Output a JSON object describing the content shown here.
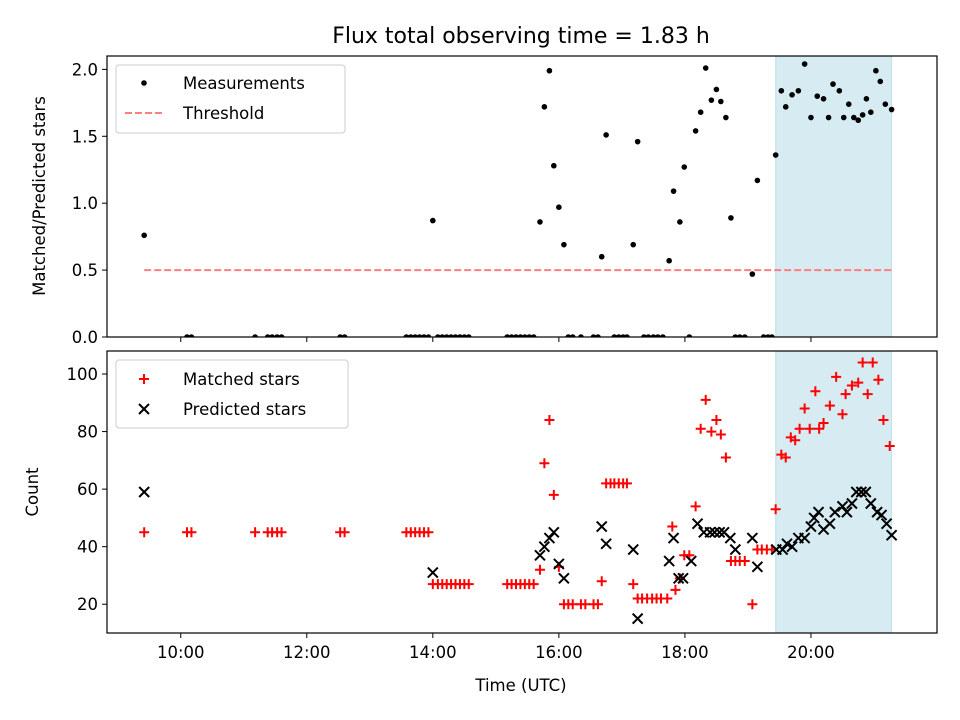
{
  "chart_data": [
    {
      "type": "scatter",
      "title": "Flux total observing time = 1.83 h",
      "xlabel": "",
      "ylabel": "Matched/Predicted stars",
      "xlim": [
        8.83,
        22.0
      ],
      "ylim": [
        0.0,
        2.1
      ],
      "yticks": [
        0.0,
        0.5,
        1.0,
        1.5,
        2.0
      ],
      "ytick_labels": [
        "0.0",
        "0.5",
        "1.0",
        "1.5",
        "2.0"
      ],
      "xticks": [
        10,
        12,
        14,
        16,
        18,
        20
      ],
      "highlight_span": [
        19.44,
        21.28
      ],
      "legend": {
        "position": "upper-left",
        "measurements_label": "Measurements",
        "threshold_label": "Threshold"
      },
      "threshold": {
        "value": 0.5,
        "x_range": [
          9.42,
          21.28
        ],
        "color": "#ff7f7f"
      },
      "series": [
        {
          "name": "Measurements",
          "marker": "dot",
          "color": "#000000",
          "points": [
            [
              9.42,
              0.76
            ],
            [
              10.1,
              0.0
            ],
            [
              10.17,
              0.0
            ],
            [
              11.18,
              0.0
            ],
            [
              11.38,
              0.0
            ],
            [
              11.45,
              0.0
            ],
            [
              11.53,
              0.0
            ],
            [
              11.6,
              0.0
            ],
            [
              12.53,
              0.0
            ],
            [
              12.6,
              0.0
            ],
            [
              13.58,
              0.0
            ],
            [
              13.65,
              0.0
            ],
            [
              13.72,
              0.0
            ],
            [
              13.79,
              0.0
            ],
            [
              13.86,
              0.0
            ],
            [
              13.93,
              0.0
            ],
            [
              14.0,
              0.87
            ],
            [
              14.08,
              0.0
            ],
            [
              14.15,
              0.0
            ],
            [
              14.22,
              0.0
            ],
            [
              14.29,
              0.0
            ],
            [
              14.36,
              0.0
            ],
            [
              14.43,
              0.0
            ],
            [
              14.5,
              0.0
            ],
            [
              14.57,
              0.0
            ],
            [
              15.18,
              0.0
            ],
            [
              15.25,
              0.0
            ],
            [
              15.32,
              0.0
            ],
            [
              15.39,
              0.0
            ],
            [
              15.46,
              0.0
            ],
            [
              15.53,
              0.0
            ],
            [
              15.6,
              0.0
            ],
            [
              15.7,
              0.86
            ],
            [
              15.77,
              1.72
            ],
            [
              15.85,
              1.99
            ],
            [
              15.92,
              1.28
            ],
            [
              16.0,
              0.97
            ],
            [
              16.08,
              0.69
            ],
            [
              16.15,
              0.0
            ],
            [
              16.22,
              0.0
            ],
            [
              16.35,
              0.0
            ],
            [
              16.55,
              0.0
            ],
            [
              16.62,
              0.0
            ],
            [
              16.68,
              0.6
            ],
            [
              16.75,
              1.51
            ],
            [
              16.88,
              0.0
            ],
            [
              16.95,
              0.0
            ],
            [
              17.02,
              0.0
            ],
            [
              17.08,
              0.0
            ],
            [
              17.18,
              0.69
            ],
            [
              17.25,
              1.46
            ],
            [
              17.35,
              0.0
            ],
            [
              17.42,
              0.0
            ],
            [
              17.5,
              0.0
            ],
            [
              17.57,
              0.0
            ],
            [
              17.65,
              0.0
            ],
            [
              17.75,
              0.57
            ],
            [
              17.82,
              1.09
            ],
            [
              17.92,
              0.86
            ],
            [
              17.99,
              1.27
            ],
            [
              18.07,
              0.0
            ],
            [
              18.17,
              1.54
            ],
            [
              18.25,
              1.68
            ],
            [
              18.33,
              2.01
            ],
            [
              18.42,
              1.77
            ],
            [
              18.5,
              1.85
            ],
            [
              18.57,
              1.76
            ],
            [
              18.65,
              1.64
            ],
            [
              18.73,
              0.89
            ],
            [
              18.8,
              0.0
            ],
            [
              18.87,
              0.0
            ],
            [
              18.95,
              0.0
            ],
            [
              19.07,
              0.47
            ],
            [
              19.15,
              1.17
            ],
            [
              19.25,
              0.0
            ],
            [
              19.32,
              0.0
            ],
            [
              19.38,
              0.0
            ],
            [
              19.44,
              1.36
            ],
            [
              19.53,
              1.84
            ],
            [
              19.6,
              1.72
            ],
            [
              19.7,
              1.81
            ],
            [
              19.8,
              1.84
            ],
            [
              19.9,
              2.04
            ],
            [
              20.0,
              1.64
            ],
            [
              20.1,
              1.8
            ],
            [
              20.2,
              1.78
            ],
            [
              20.28,
              1.64
            ],
            [
              20.35,
              1.89
            ],
            [
              20.45,
              1.84
            ],
            [
              20.52,
              1.64
            ],
            [
              20.6,
              1.74
            ],
            [
              20.68,
              1.64
            ],
            [
              20.75,
              1.62
            ],
            [
              20.82,
              1.66
            ],
            [
              20.88,
              1.78
            ],
            [
              20.95,
              1.68
            ],
            [
              21.03,
              1.99
            ],
            [
              21.1,
              1.91
            ],
            [
              21.18,
              1.74
            ],
            [
              21.28,
              1.7
            ]
          ]
        }
      ]
    },
    {
      "type": "scatter",
      "title": "",
      "xlabel": "Time (UTC)",
      "ylabel": "Count",
      "xlim": [
        8.83,
        22.0
      ],
      "ylim": [
        10,
        108
      ],
      "yticks": [
        20,
        40,
        60,
        80,
        100
      ],
      "ytick_labels": [
        "20",
        "40",
        "60",
        "80",
        "100"
      ],
      "xticks": [
        10,
        12,
        14,
        16,
        18,
        20
      ],
      "xtick_labels": [
        "10:00",
        "12:00",
        "14:00",
        "16:00",
        "18:00",
        "20:00"
      ],
      "highlight_span": [
        19.44,
        21.28
      ],
      "legend": {
        "position": "upper-left"
      },
      "series": [
        {
          "name": "Matched stars",
          "marker": "plus",
          "color": "#ff0000",
          "points": [
            [
              9.42,
              45
            ],
            [
              10.1,
              45
            ],
            [
              10.17,
              45
            ],
            [
              11.18,
              45
            ],
            [
              11.38,
              45
            ],
            [
              11.45,
              45
            ],
            [
              11.53,
              45
            ],
            [
              11.6,
              45
            ],
            [
              12.53,
              45
            ],
            [
              12.6,
              45
            ],
            [
              13.58,
              45
            ],
            [
              13.65,
              45
            ],
            [
              13.72,
              45
            ],
            [
              13.79,
              45
            ],
            [
              13.86,
              45
            ],
            [
              13.93,
              45
            ],
            [
              14.0,
              27
            ],
            [
              14.08,
              27
            ],
            [
              14.15,
              27
            ],
            [
              14.22,
              27
            ],
            [
              14.29,
              27
            ],
            [
              14.36,
              27
            ],
            [
              14.43,
              27
            ],
            [
              14.5,
              27
            ],
            [
              14.57,
              27
            ],
            [
              15.18,
              27
            ],
            [
              15.25,
              27
            ],
            [
              15.32,
              27
            ],
            [
              15.39,
              27
            ],
            [
              15.46,
              27
            ],
            [
              15.53,
              27
            ],
            [
              15.6,
              27
            ],
            [
              15.7,
              32
            ],
            [
              15.77,
              69
            ],
            [
              15.85,
              84
            ],
            [
              15.92,
              58
            ],
            [
              16.0,
              33
            ],
            [
              16.08,
              20
            ],
            [
              16.15,
              20
            ],
            [
              16.22,
              20
            ],
            [
              16.35,
              20
            ],
            [
              16.42,
              20
            ],
            [
              16.55,
              20
            ],
            [
              16.62,
              20
            ],
            [
              16.68,
              28
            ],
            [
              16.75,
              62
            ],
            [
              16.82,
              62
            ],
            [
              16.88,
              62
            ],
            [
              16.95,
              62
            ],
            [
              17.02,
              62
            ],
            [
              17.08,
              62
            ],
            [
              17.18,
              27
            ],
            [
              17.25,
              22
            ],
            [
              17.32,
              22
            ],
            [
              17.4,
              22
            ],
            [
              17.48,
              22
            ],
            [
              17.55,
              22
            ],
            [
              17.62,
              22
            ],
            [
              17.72,
              22
            ],
            [
              17.8,
              47
            ],
            [
              17.85,
              25
            ],
            [
              17.92,
              29
            ],
            [
              17.99,
              37
            ],
            [
              18.07,
              37
            ],
            [
              18.17,
              54
            ],
            [
              18.25,
              81
            ],
            [
              18.33,
              91
            ],
            [
              18.42,
              80
            ],
            [
              18.5,
              84
            ],
            [
              18.57,
              79
            ],
            [
              18.65,
              71
            ],
            [
              18.73,
              35
            ],
            [
              18.8,
              35
            ],
            [
              18.87,
              35
            ],
            [
              18.95,
              35
            ],
            [
              19.07,
              20
            ],
            [
              19.15,
              39
            ],
            [
              19.22,
              39
            ],
            [
              19.3,
              39
            ],
            [
              19.38,
              39
            ],
            [
              19.44,
              53
            ],
            [
              19.53,
              72
            ],
            [
              19.6,
              71
            ],
            [
              19.68,
              78
            ],
            [
              19.75,
              77
            ],
            [
              19.82,
              81
            ],
            [
              19.9,
              88
            ],
            [
              19.98,
              81
            ],
            [
              20.07,
              94
            ],
            [
              20.13,
              81
            ],
            [
              20.2,
              83
            ],
            [
              20.3,
              89
            ],
            [
              20.4,
              99
            ],
            [
              20.5,
              86
            ],
            [
              20.55,
              93
            ],
            [
              20.65,
              96
            ],
            [
              20.75,
              97
            ],
            [
              20.82,
              104
            ],
            [
              20.9,
              93
            ],
            [
              20.98,
              104
            ],
            [
              21.07,
              98
            ],
            [
              21.15,
              84
            ],
            [
              21.25,
              75
            ]
          ]
        },
        {
          "name": "Predicted stars",
          "marker": "x",
          "color": "#000000",
          "points": [
            [
              9.42,
              59
            ],
            [
              14.0,
              31
            ],
            [
              15.7,
              37
            ],
            [
              15.77,
              40
            ],
            [
              15.85,
              43
            ],
            [
              15.92,
              45
            ],
            [
              16.0,
              34
            ],
            [
              16.08,
              29
            ],
            [
              16.68,
              47
            ],
            [
              16.75,
              41
            ],
            [
              17.18,
              39
            ],
            [
              17.25,
              15
            ],
            [
              17.75,
              35
            ],
            [
              17.82,
              43
            ],
            [
              17.9,
              29
            ],
            [
              17.97,
              29
            ],
            [
              18.1,
              35
            ],
            [
              18.2,
              48
            ],
            [
              18.3,
              45
            ],
            [
              18.4,
              45
            ],
            [
              18.47,
              45
            ],
            [
              18.55,
              45
            ],
            [
              18.62,
              45
            ],
            [
              18.72,
              43
            ],
            [
              18.8,
              39
            ],
            [
              19.07,
              43
            ],
            [
              19.15,
              33
            ],
            [
              19.45,
              39
            ],
            [
              19.55,
              39
            ],
            [
              19.62,
              41
            ],
            [
              19.7,
              40
            ],
            [
              19.8,
              43
            ],
            [
              19.9,
              43
            ],
            [
              20.0,
              47
            ],
            [
              20.05,
              50
            ],
            [
              20.12,
              52
            ],
            [
              20.2,
              46
            ],
            [
              20.3,
              48
            ],
            [
              20.38,
              52
            ],
            [
              20.5,
              54
            ],
            [
              20.57,
              52
            ],
            [
              20.65,
              55
            ],
            [
              20.72,
              59
            ],
            [
              20.8,
              59
            ],
            [
              20.87,
              59
            ],
            [
              20.95,
              55
            ],
            [
              21.05,
              52
            ],
            [
              21.12,
              51
            ],
            [
              21.2,
              48
            ],
            [
              21.28,
              44
            ]
          ]
        }
      ]
    }
  ]
}
